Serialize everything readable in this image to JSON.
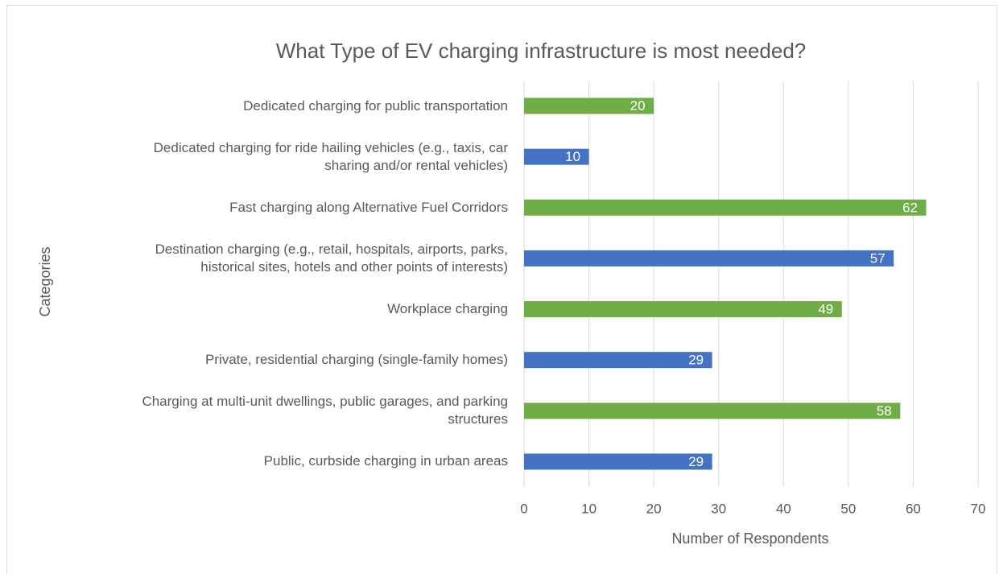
{
  "chart_data": {
    "type": "barh",
    "title": "What Type of EV charging infrastructure is most needed?",
    "xlabel": "Number of Respondents",
    "ylabel": "Categories",
    "categories": [
      "Dedicated charging for public transportation",
      "Dedicated charging for ride hailing vehicles (e.g., taxis, car\nsharing and/or rental vehicles)",
      "Fast charging along Alternative Fuel Corridors",
      "Destination charging (e.g., retail, hospitals, airports, parks,\nhistorical sites, hotels and other points of interests)",
      "Workplace charging",
      "Private, residential charging (single-family homes)",
      "Charging at multi-unit dwellings, public garages, and parking\nstructures",
      "Public, curbside charging in urban areas"
    ],
    "values": [
      20,
      10,
      62,
      57,
      49,
      29,
      58,
      29
    ],
    "colors": [
      "#70ad47",
      "#4472c4",
      "#70ad47",
      "#4472c4",
      "#70ad47",
      "#4472c4",
      "#70ad47",
      "#4472c4"
    ],
    "xlim": [
      0,
      70
    ],
    "xticks": [
      0,
      10,
      20,
      30,
      40,
      50,
      60,
      70
    ],
    "grid": true
  }
}
